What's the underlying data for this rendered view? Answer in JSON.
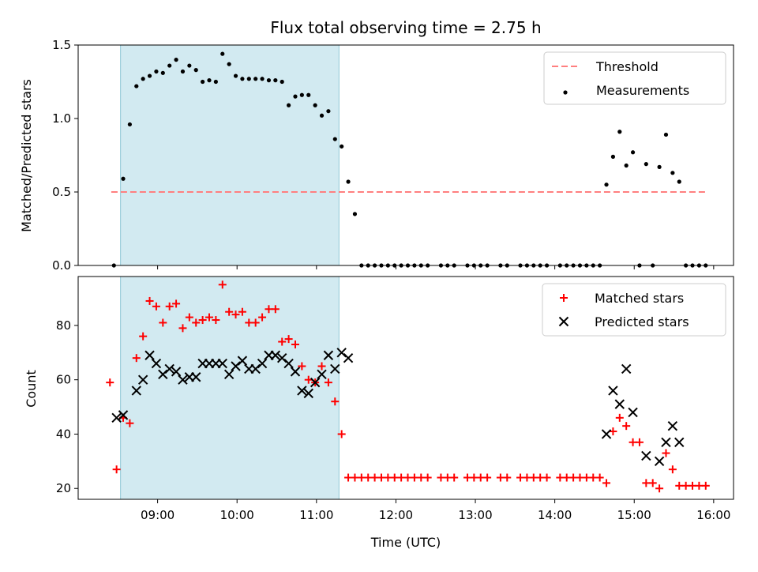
{
  "chart_data": [
    {
      "type": "scatter",
      "title": "Flux total observing time = 2.75 h",
      "ylabel": "Matched/Predicted stars",
      "xlabel": "",
      "ylim": [
        0,
        1.5
      ],
      "yticks": [
        "0.0",
        "0.5",
        "1.0",
        "1.5"
      ],
      "shaded_interval": [
        "08:32",
        "11:17"
      ],
      "grid": false,
      "legend_position": "top-right",
      "threshold": {
        "name": "Threshold",
        "value": 0.5,
        "x_range": [
          "08:25",
          "15:55"
        ],
        "color": "#ff7f7f"
      },
      "series": [
        {
          "name": "Measurements",
          "color": "#000000",
          "points": [
            [
              "08:27",
              0.0
            ],
            [
              "08:34",
              0.59
            ],
            [
              "08:39",
              0.96
            ],
            [
              "08:44",
              1.22
            ],
            [
              "08:49",
              1.27
            ],
            [
              "08:54",
              1.29
            ],
            [
              "08:59",
              1.32
            ],
            [
              "09:04",
              1.31
            ],
            [
              "09:09",
              1.36
            ],
            [
              "09:14",
              1.4
            ],
            [
              "09:19",
              1.32
            ],
            [
              "09:24",
              1.36
            ],
            [
              "09:29",
              1.33
            ],
            [
              "09:34",
              1.25
            ],
            [
              "09:39",
              1.26
            ],
            [
              "09:44",
              1.25
            ],
            [
              "09:49",
              1.44
            ],
            [
              "09:54",
              1.37
            ],
            [
              "09:59",
              1.29
            ],
            [
              "10:04",
              1.27
            ],
            [
              "10:09",
              1.27
            ],
            [
              "10:14",
              1.27
            ],
            [
              "10:19",
              1.27
            ],
            [
              "10:24",
              1.26
            ],
            [
              "10:29",
              1.26
            ],
            [
              "10:34",
              1.25
            ],
            [
              "10:39",
              1.09
            ],
            [
              "10:44",
              1.15
            ],
            [
              "10:49",
              1.16
            ],
            [
              "10:54",
              1.16
            ],
            [
              "10:59",
              1.09
            ],
            [
              "11:04",
              1.02
            ],
            [
              "11:09",
              1.05
            ],
            [
              "11:14",
              0.86
            ],
            [
              "11:19",
              0.81
            ],
            [
              "11:24",
              0.57
            ],
            [
              "11:29",
              0.35
            ],
            [
              "11:34",
              0
            ],
            [
              "11:39",
              0
            ],
            [
              "11:44",
              0
            ],
            [
              "11:49",
              0
            ],
            [
              "11:54",
              0
            ],
            [
              "11:59",
              0
            ],
            [
              "12:04",
              0
            ],
            [
              "12:09",
              0
            ],
            [
              "12:14",
              0
            ],
            [
              "12:19",
              0
            ],
            [
              "12:24",
              0
            ],
            [
              "12:34",
              0
            ],
            [
              "12:39",
              0
            ],
            [
              "12:44",
              0
            ],
            [
              "12:54",
              0
            ],
            [
              "12:59",
              0
            ],
            [
              "13:04",
              0
            ],
            [
              "13:09",
              0
            ],
            [
              "13:19",
              0
            ],
            [
              "13:24",
              0
            ],
            [
              "13:34",
              0
            ],
            [
              "13:39",
              0
            ],
            [
              "13:44",
              0
            ],
            [
              "13:49",
              0
            ],
            [
              "13:54",
              0
            ],
            [
              "14:04",
              0
            ],
            [
              "14:09",
              0
            ],
            [
              "14:14",
              0
            ],
            [
              "14:19",
              0
            ],
            [
              "14:24",
              0
            ],
            [
              "14:29",
              0
            ],
            [
              "14:34",
              0
            ],
            [
              "14:39",
              0.55
            ],
            [
              "14:44",
              0.74
            ],
            [
              "14:49",
              0.91
            ],
            [
              "14:54",
              0.68
            ],
            [
              "14:59",
              0.77
            ],
            [
              "15:04",
              0.0
            ],
            [
              "15:09",
              0.69
            ],
            [
              "15:14",
              0.0
            ],
            [
              "15:19",
              0.67
            ],
            [
              "15:24",
              0.89
            ],
            [
              "15:29",
              0.63
            ],
            [
              "15:34",
              0.57
            ],
            [
              "15:39",
              0.0
            ],
            [
              "15:44",
              0.0
            ],
            [
              "15:49",
              0.0
            ],
            [
              "15:54",
              0.0
            ]
          ]
        }
      ]
    },
    {
      "type": "scatter",
      "title": "",
      "ylabel": "Count",
      "xlabel": "Time (UTC)",
      "ylim": [
        16,
        98
      ],
      "yticks": [
        "20",
        "40",
        "60",
        "80"
      ],
      "xticks": [
        "09:00",
        "10:00",
        "11:00",
        "12:00",
        "13:00",
        "14:00",
        "15:00",
        "16:00"
      ],
      "shaded_interval": [
        "08:32",
        "11:17"
      ],
      "grid": false,
      "legend_position": "top-right",
      "series": [
        {
          "name": "Matched stars",
          "marker": "plus",
          "color": "#ff0000",
          "points": [
            [
              "08:24",
              59
            ],
            [
              "08:29",
              27
            ],
            [
              "08:34",
              46
            ],
            [
              "08:39",
              44
            ],
            [
              "08:44",
              68
            ],
            [
              "08:49",
              76
            ],
            [
              "08:54",
              89
            ],
            [
              "08:59",
              87
            ],
            [
              "09:04",
              81
            ],
            [
              "09:09",
              87
            ],
            [
              "09:14",
              88
            ],
            [
              "09:19",
              79
            ],
            [
              "09:24",
              83
            ],
            [
              "09:29",
              81
            ],
            [
              "09:34",
              82
            ],
            [
              "09:39",
              83
            ],
            [
              "09:44",
              82
            ],
            [
              "09:49",
              95
            ],
            [
              "09:54",
              85
            ],
            [
              "09:59",
              84
            ],
            [
              "10:04",
              85
            ],
            [
              "10:09",
              81
            ],
            [
              "10:14",
              81
            ],
            [
              "10:19",
              83
            ],
            [
              "10:24",
              86
            ],
            [
              "10:29",
              86
            ],
            [
              "10:34",
              74
            ],
            [
              "10:39",
              75
            ],
            [
              "10:44",
              73
            ],
            [
              "10:49",
              65
            ],
            [
              "10:54",
              60
            ],
            [
              "10:59",
              59
            ],
            [
              "11:04",
              65
            ],
            [
              "11:09",
              59
            ],
            [
              "11:14",
              52
            ],
            [
              "11:19",
              40
            ],
            [
              "11:24",
              24
            ],
            [
              "11:29",
              24
            ],
            [
              "11:34",
              24
            ],
            [
              "11:39",
              24
            ],
            [
              "11:44",
              24
            ],
            [
              "11:49",
              24
            ],
            [
              "11:54",
              24
            ],
            [
              "11:59",
              24
            ],
            [
              "12:04",
              24
            ],
            [
              "12:09",
              24
            ],
            [
              "12:14",
              24
            ],
            [
              "12:19",
              24
            ],
            [
              "12:24",
              24
            ],
            [
              "12:34",
              24
            ],
            [
              "12:39",
              24
            ],
            [
              "12:44",
              24
            ],
            [
              "12:54",
              24
            ],
            [
              "12:59",
              24
            ],
            [
              "13:04",
              24
            ],
            [
              "13:09",
              24
            ],
            [
              "13:19",
              24
            ],
            [
              "13:24",
              24
            ],
            [
              "13:34",
              24
            ],
            [
              "13:39",
              24
            ],
            [
              "13:44",
              24
            ],
            [
              "13:49",
              24
            ],
            [
              "13:54",
              24
            ],
            [
              "14:04",
              24
            ],
            [
              "14:09",
              24
            ],
            [
              "14:14",
              24
            ],
            [
              "14:19",
              24
            ],
            [
              "14:24",
              24
            ],
            [
              "14:29",
              24
            ],
            [
              "14:34",
              24
            ],
            [
              "14:39",
              22
            ],
            [
              "14:44",
              41
            ],
            [
              "14:49",
              46
            ],
            [
              "14:54",
              43
            ],
            [
              "14:59",
              37
            ],
            [
              "15:04",
              37
            ],
            [
              "15:09",
              22
            ],
            [
              "15:14",
              22
            ],
            [
              "15:19",
              20
            ],
            [
              "15:24",
              33
            ],
            [
              "15:29",
              27
            ],
            [
              "15:34",
              21
            ],
            [
              "15:39",
              21
            ],
            [
              "15:44",
              21
            ],
            [
              "15:49",
              21
            ],
            [
              "15:54",
              21
            ]
          ]
        },
        {
          "name": "Predicted stars",
          "marker": "x",
          "color": "#000000",
          "points": [
            [
              "08:29",
              46
            ],
            [
              "08:34",
              47
            ],
            [
              "08:44",
              56
            ],
            [
              "08:49",
              60
            ],
            [
              "08:54",
              69
            ],
            [
              "08:59",
              66
            ],
            [
              "09:04",
              62
            ],
            [
              "09:09",
              64
            ],
            [
              "09:14",
              63
            ],
            [
              "09:19",
              60
            ],
            [
              "09:24",
              61
            ],
            [
              "09:29",
              61
            ],
            [
              "09:34",
              66
            ],
            [
              "09:39",
              66
            ],
            [
              "09:44",
              66
            ],
            [
              "09:49",
              66
            ],
            [
              "09:54",
              62
            ],
            [
              "09:59",
              65
            ],
            [
              "10:04",
              67
            ],
            [
              "10:09",
              64
            ],
            [
              "10:14",
              64
            ],
            [
              "10:19",
              66
            ],
            [
              "10:24",
              69
            ],
            [
              "10:29",
              69
            ],
            [
              "10:34",
              68
            ],
            [
              "10:39",
              66
            ],
            [
              "10:44",
              63
            ],
            [
              "10:49",
              56
            ],
            [
              "10:54",
              55
            ],
            [
              "10:59",
              59
            ],
            [
              "11:04",
              62
            ],
            [
              "11:09",
              69
            ],
            [
              "11:14",
              64
            ],
            [
              "11:19",
              70
            ],
            [
              "11:24",
              68
            ],
            [
              "14:39",
              40
            ],
            [
              "14:44",
              56
            ],
            [
              "14:49",
              51
            ],
            [
              "14:54",
              64
            ],
            [
              "14:59",
              48
            ],
            [
              "15:09",
              32
            ],
            [
              "15:19",
              30
            ],
            [
              "15:24",
              37
            ],
            [
              "15:29",
              43
            ],
            [
              "15:34",
              37
            ]
          ]
        }
      ]
    }
  ]
}
